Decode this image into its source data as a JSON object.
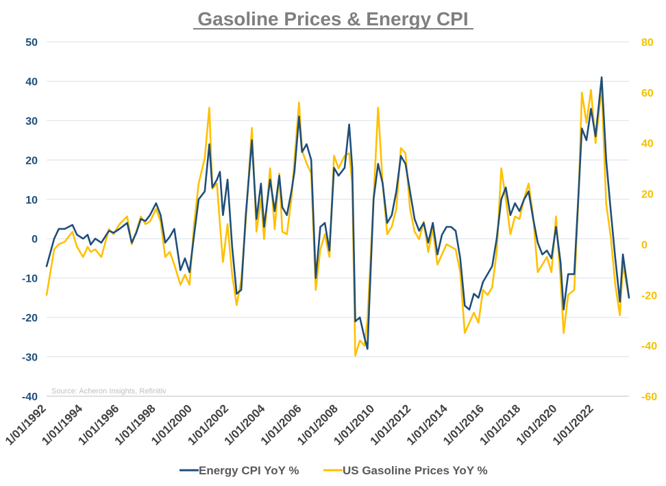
{
  "chart_data": {
    "type": "line",
    "title": "Gasoline Prices & Energy CPI",
    "source": "Source: Acheron Insights, Refinitiv",
    "x_range": [
      "1992-01-01",
      "2023-12-01"
    ],
    "x_tick_labels": [
      "1/01/1992",
      "1/01/1994",
      "1/01/1996",
      "1/01/1998",
      "1/01/2000",
      "1/01/2002",
      "1/01/2004",
      "1/01/2006",
      "1/01/2008",
      "1/01/2010",
      "1/01/2012",
      "1/01/2014",
      "1/01/2016",
      "1/01/2018",
      "1/01/2020",
      "1/01/2022"
    ],
    "y_left": {
      "ylim": [
        -40,
        50
      ],
      "ticks": [
        -40,
        -30,
        -20,
        -10,
        0,
        10,
        20,
        30,
        40,
        50
      ],
      "color": "#1f4e79"
    },
    "y_right": {
      "ylim": [
        -60,
        80
      ],
      "ticks": [
        -60,
        -40,
        -20,
        0,
        20,
        40,
        60,
        80
      ],
      "color": "#f2c200"
    },
    "grid": "horizontal",
    "legend_position": "bottom",
    "series": [
      {
        "name": "Energy CPI YoY %",
        "axis": "left",
        "color": "#1f4e79",
        "points": [
          [
            "1992-01",
            -7
          ],
          [
            "1992-06",
            0
          ],
          [
            "1992-09",
            2.5
          ],
          [
            "1993-01",
            2.5
          ],
          [
            "1993-06",
            3.5
          ],
          [
            "1993-09",
            1
          ],
          [
            "1994-01",
            0
          ],
          [
            "1994-04",
            1
          ],
          [
            "1994-06",
            -1.5
          ],
          [
            "1994-09",
            0
          ],
          [
            "1995-01",
            -1
          ],
          [
            "1995-06",
            2
          ],
          [
            "1995-09",
            1.5
          ],
          [
            "1996-01",
            2.5
          ],
          [
            "1996-06",
            4
          ],
          [
            "1996-09",
            -1
          ],
          [
            "1996-12",
            1.5
          ],
          [
            "1997-03",
            5
          ],
          [
            "1997-06",
            4.5
          ],
          [
            "1997-09",
            6
          ],
          [
            "1998-01",
            9
          ],
          [
            "1998-04",
            6
          ],
          [
            "1998-07",
            -1
          ],
          [
            "1998-10",
            0.5
          ],
          [
            "1999-01",
            2.5
          ],
          [
            "1999-05",
            -8
          ],
          [
            "1999-08",
            -5
          ],
          [
            "1999-11",
            -8.5
          ],
          [
            "2000-02",
            1
          ],
          [
            "2000-05",
            10
          ],
          [
            "2000-09",
            12
          ],
          [
            "2000-12",
            24
          ],
          [
            "2001-02",
            13
          ],
          [
            "2001-05",
            15
          ],
          [
            "2001-07",
            17
          ],
          [
            "2001-09",
            6
          ],
          [
            "2001-12",
            15
          ],
          [
            "2002-03",
            -2
          ],
          [
            "2002-06",
            -14
          ],
          [
            "2002-09",
            -13
          ],
          [
            "2002-12",
            6
          ],
          [
            "2003-04",
            25
          ],
          [
            "2003-07",
            5
          ],
          [
            "2003-10",
            14
          ],
          [
            "2003-12",
            3
          ],
          [
            "2004-04",
            15
          ],
          [
            "2004-07",
            7
          ],
          [
            "2004-10",
            16
          ],
          [
            "2004-12",
            8
          ],
          [
            "2005-03",
            6
          ],
          [
            "2005-06",
            12
          ],
          [
            "2005-08",
            17
          ],
          [
            "2005-11",
            31
          ],
          [
            "2006-01",
            22
          ],
          [
            "2006-04",
            24
          ],
          [
            "2006-07",
            20
          ],
          [
            "2006-10",
            -10
          ],
          [
            "2007-01",
            3
          ],
          [
            "2007-04",
            4
          ],
          [
            "2007-07",
            -3
          ],
          [
            "2007-10",
            18
          ],
          [
            "2008-01",
            16
          ],
          [
            "2008-05",
            18
          ],
          [
            "2008-08",
            29
          ],
          [
            "2008-10",
            18
          ],
          [
            "2008-12",
            -21
          ],
          [
            "2009-03",
            -20
          ],
          [
            "2009-06",
            -25
          ],
          [
            "2009-08",
            -28
          ],
          [
            "2009-12",
            10
          ],
          [
            "2010-03",
            19
          ],
          [
            "2010-06",
            14
          ],
          [
            "2010-09",
            4
          ],
          [
            "2010-12",
            6
          ],
          [
            "2011-03",
            12
          ],
          [
            "2011-06",
            21
          ],
          [
            "2011-09",
            19
          ],
          [
            "2011-12",
            12
          ],
          [
            "2012-03",
            5
          ],
          [
            "2012-06",
            2
          ],
          [
            "2012-09",
            4
          ],
          [
            "2012-12",
            -1
          ],
          [
            "2013-03",
            4
          ],
          [
            "2013-06",
            -4
          ],
          [
            "2013-09",
            1
          ],
          [
            "2013-12",
            3
          ],
          [
            "2014-03",
            3
          ],
          [
            "2014-06",
            2
          ],
          [
            "2014-09",
            -5
          ],
          [
            "2014-12",
            -17
          ],
          [
            "2015-03",
            -18
          ],
          [
            "2015-06",
            -14
          ],
          [
            "2015-09",
            -15
          ],
          [
            "2015-12",
            -11
          ],
          [
            "2016-03",
            -9
          ],
          [
            "2016-06",
            -7
          ],
          [
            "2016-09",
            0
          ],
          [
            "2016-12",
            10
          ],
          [
            "2017-03",
            13
          ],
          [
            "2017-06",
            6
          ],
          [
            "2017-09",
            9
          ],
          [
            "2017-12",
            7
          ],
          [
            "2018-03",
            10
          ],
          [
            "2018-06",
            12
          ],
          [
            "2018-09",
            5
          ],
          [
            "2018-12",
            -1
          ],
          [
            "2019-03",
            -4
          ],
          [
            "2019-06",
            -3
          ],
          [
            "2019-09",
            -5
          ],
          [
            "2019-12",
            3
          ],
          [
            "2020-03",
            -6
          ],
          [
            "2020-05",
            -18
          ],
          [
            "2020-08",
            -9
          ],
          [
            "2020-12",
            -9
          ],
          [
            "2021-03",
            13
          ],
          [
            "2021-05",
            28
          ],
          [
            "2021-08",
            25
          ],
          [
            "2021-11",
            33
          ],
          [
            "2022-02",
            26
          ],
          [
            "2022-06",
            41
          ],
          [
            "2022-09",
            20
          ],
          [
            "2022-12",
            7
          ],
          [
            "2023-03",
            -5
          ],
          [
            "2023-06",
            -16
          ],
          [
            "2023-08",
            -4
          ],
          [
            "2023-12",
            -15
          ]
        ]
      },
      {
        "name": "US Gasoline Prices YoY %",
        "axis": "right",
        "color": "#ffc000",
        "points": [
          [
            "1992-01",
            -20
          ],
          [
            "1992-06",
            -2
          ],
          [
            "1992-09",
            0
          ],
          [
            "1993-01",
            1
          ],
          [
            "1993-06",
            5
          ],
          [
            "1993-09",
            -1
          ],
          [
            "1994-01",
            -5
          ],
          [
            "1994-04",
            -1
          ],
          [
            "1994-06",
            -3
          ],
          [
            "1994-09",
            -2
          ],
          [
            "1995-01",
            -5
          ],
          [
            "1995-06",
            6
          ],
          [
            "1995-09",
            4
          ],
          [
            "1996-01",
            8
          ],
          [
            "1996-06",
            11
          ],
          [
            "1996-09",
            0
          ],
          [
            "1996-12",
            5
          ],
          [
            "1997-03",
            11
          ],
          [
            "1997-06",
            8
          ],
          [
            "1997-09",
            9
          ],
          [
            "1998-01",
            14
          ],
          [
            "1998-04",
            9
          ],
          [
            "1998-07",
            -5
          ],
          [
            "1998-10",
            -3
          ],
          [
            "1999-01",
            -8
          ],
          [
            "1999-05",
            -16
          ],
          [
            "1999-08",
            -12
          ],
          [
            "1999-11",
            -16
          ],
          [
            "2000-02",
            8
          ],
          [
            "2000-05",
            24
          ],
          [
            "2000-09",
            34
          ],
          [
            "2000-12",
            54
          ],
          [
            "2001-02",
            22
          ],
          [
            "2001-05",
            24
          ],
          [
            "2001-07",
            8
          ],
          [
            "2001-09",
            -7
          ],
          [
            "2001-12",
            8
          ],
          [
            "2002-03",
            -12
          ],
          [
            "2002-06",
            -24
          ],
          [
            "2002-09",
            -14
          ],
          [
            "2002-12",
            9
          ],
          [
            "2003-04",
            46
          ],
          [
            "2003-07",
            5
          ],
          [
            "2003-10",
            18
          ],
          [
            "2003-12",
            2
          ],
          [
            "2004-04",
            30
          ],
          [
            "2004-07",
            6
          ],
          [
            "2004-10",
            28
          ],
          [
            "2004-12",
            5
          ],
          [
            "2005-03",
            4
          ],
          [
            "2005-06",
            18
          ],
          [
            "2005-08",
            33
          ],
          [
            "2005-11",
            56
          ],
          [
            "2006-01",
            37
          ],
          [
            "2006-04",
            32
          ],
          [
            "2006-07",
            28
          ],
          [
            "2006-10",
            -18
          ],
          [
            "2007-01",
            -2
          ],
          [
            "2007-04",
            4
          ],
          [
            "2007-07",
            -5
          ],
          [
            "2007-10",
            35
          ],
          [
            "2008-01",
            30
          ],
          [
            "2008-05",
            35
          ],
          [
            "2008-08",
            36
          ],
          [
            "2008-10",
            24
          ],
          [
            "2008-12",
            -44
          ],
          [
            "2009-03",
            -38
          ],
          [
            "2009-06",
            -40
          ],
          [
            "2009-08",
            -30
          ],
          [
            "2009-12",
            18
          ],
          [
            "2010-03",
            54
          ],
          [
            "2010-06",
            24
          ],
          [
            "2010-09",
            4
          ],
          [
            "2010-12",
            7
          ],
          [
            "2011-03",
            14
          ],
          [
            "2011-06",
            38
          ],
          [
            "2011-09",
            36
          ],
          [
            "2011-12",
            14
          ],
          [
            "2012-03",
            5
          ],
          [
            "2012-06",
            2
          ],
          [
            "2012-09",
            9
          ],
          [
            "2012-12",
            -3
          ],
          [
            "2013-03",
            6
          ],
          [
            "2013-06",
            -8
          ],
          [
            "2013-09",
            -4
          ],
          [
            "2013-12",
            0
          ],
          [
            "2014-03",
            -1
          ],
          [
            "2014-06",
            -2
          ],
          [
            "2014-09",
            -11
          ],
          [
            "2014-12",
            -35
          ],
          [
            "2015-03",
            -31
          ],
          [
            "2015-06",
            -27
          ],
          [
            "2015-09",
            -31
          ],
          [
            "2015-12",
            -18
          ],
          [
            "2016-03",
            -20
          ],
          [
            "2016-06",
            -17
          ],
          [
            "2016-09",
            -3
          ],
          [
            "2016-12",
            30
          ],
          [
            "2017-03",
            18
          ],
          [
            "2017-06",
            4
          ],
          [
            "2017-09",
            11
          ],
          [
            "2017-12",
            10
          ],
          [
            "2018-03",
            18
          ],
          [
            "2018-06",
            24
          ],
          [
            "2018-09",
            11
          ],
          [
            "2018-12",
            -11
          ],
          [
            "2019-03",
            -8
          ],
          [
            "2019-06",
            -5
          ],
          [
            "2019-09",
            -11
          ],
          [
            "2019-12",
            11
          ],
          [
            "2020-03",
            -14
          ],
          [
            "2020-05",
            -35
          ],
          [
            "2020-08",
            -20
          ],
          [
            "2020-12",
            -18
          ],
          [
            "2021-03",
            22
          ],
          [
            "2021-05",
            60
          ],
          [
            "2021-08",
            48
          ],
          [
            "2021-11",
            61
          ],
          [
            "2022-02",
            40
          ],
          [
            "2022-06",
            62
          ],
          [
            "2022-09",
            16
          ],
          [
            "2022-12",
            3
          ],
          [
            "2023-03",
            -16
          ],
          [
            "2023-06",
            -28
          ],
          [
            "2023-08",
            -8
          ],
          [
            "2023-12",
            -21
          ]
        ]
      }
    ]
  }
}
